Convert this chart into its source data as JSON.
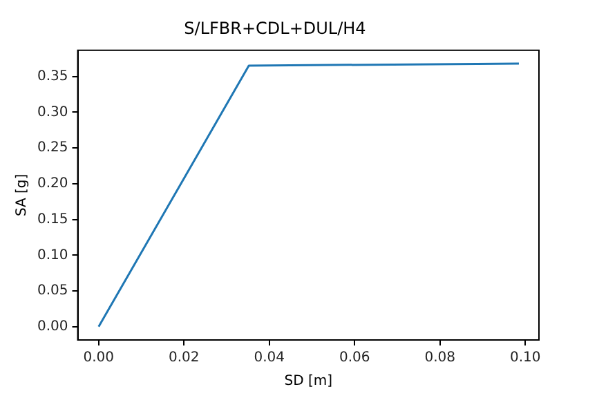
{
  "chart_data": {
    "type": "line",
    "title": "S/LFBR+CDL+DUL/H4",
    "xlabel": "SD [m]",
    "ylabel": "SA [g]",
    "x": [
      0,
      0.0352,
      0.0985
    ],
    "series": [
      {
        "color": "#1f77b4",
        "values": [
          0,
          0.365,
          0.368
        ]
      }
    ],
    "xlim": [
      -0.0049,
      0.1032
    ],
    "ylim": [
      -0.0185,
      0.3865
    ],
    "xticks": [
      {
        "value": 0,
        "label": "0.00"
      },
      {
        "value": 0.02,
        "label": "0.02"
      },
      {
        "value": 0.04,
        "label": "0.04"
      },
      {
        "value": 0.06,
        "label": "0.06"
      },
      {
        "value": 0.08,
        "label": "0.08"
      },
      {
        "value": 0.1,
        "label": "0.10"
      }
    ],
    "yticks": [
      {
        "value": 0,
        "label": "0.00"
      },
      {
        "value": 0.05,
        "label": "0.05"
      },
      {
        "value": 0.1,
        "label": "0.10"
      },
      {
        "value": 0.15,
        "label": "0.15"
      },
      {
        "value": 0.2,
        "label": "0.20"
      },
      {
        "value": 0.25,
        "label": "0.25"
      },
      {
        "value": 0.3,
        "label": "0.30"
      },
      {
        "value": 0.35,
        "label": "0.35"
      }
    ],
    "grid": false,
    "legend": false,
    "marker": "none",
    "line_style": "solid"
  }
}
